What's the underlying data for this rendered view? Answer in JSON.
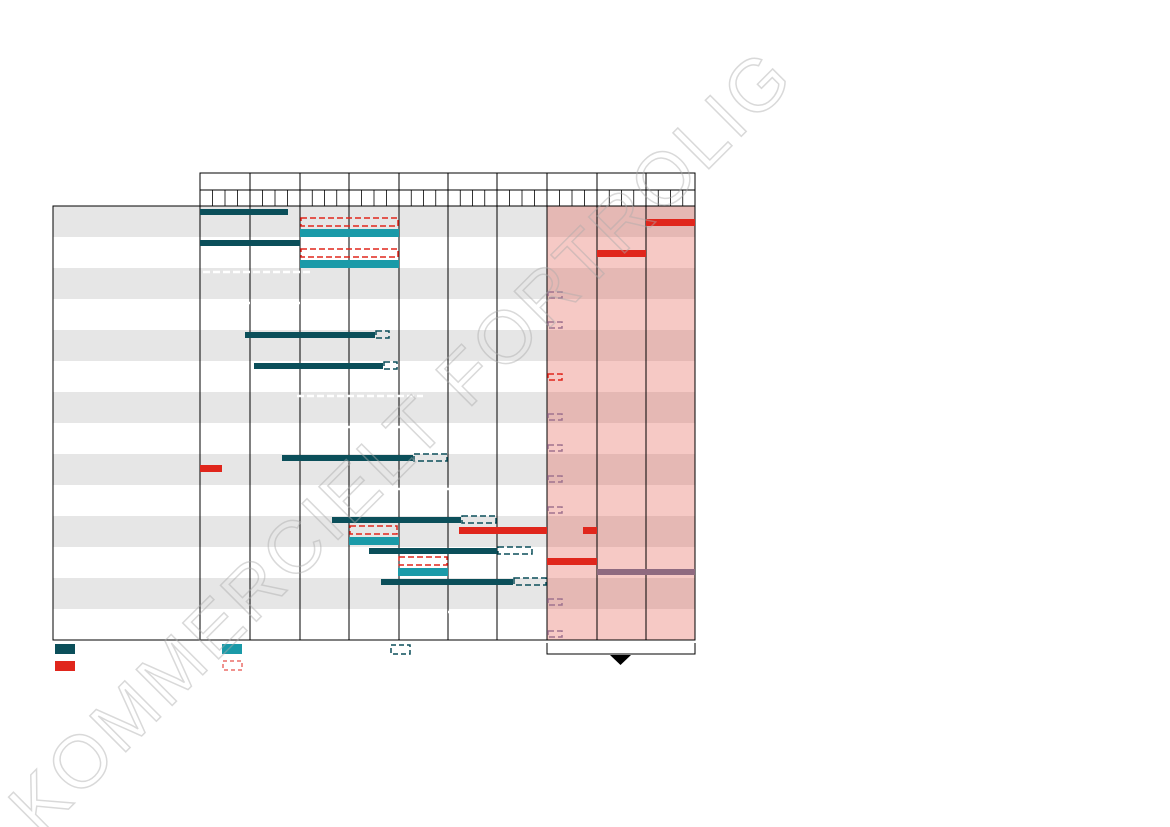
{
  "watermark": "KOMMERCIELT FORTROLIG"
}
